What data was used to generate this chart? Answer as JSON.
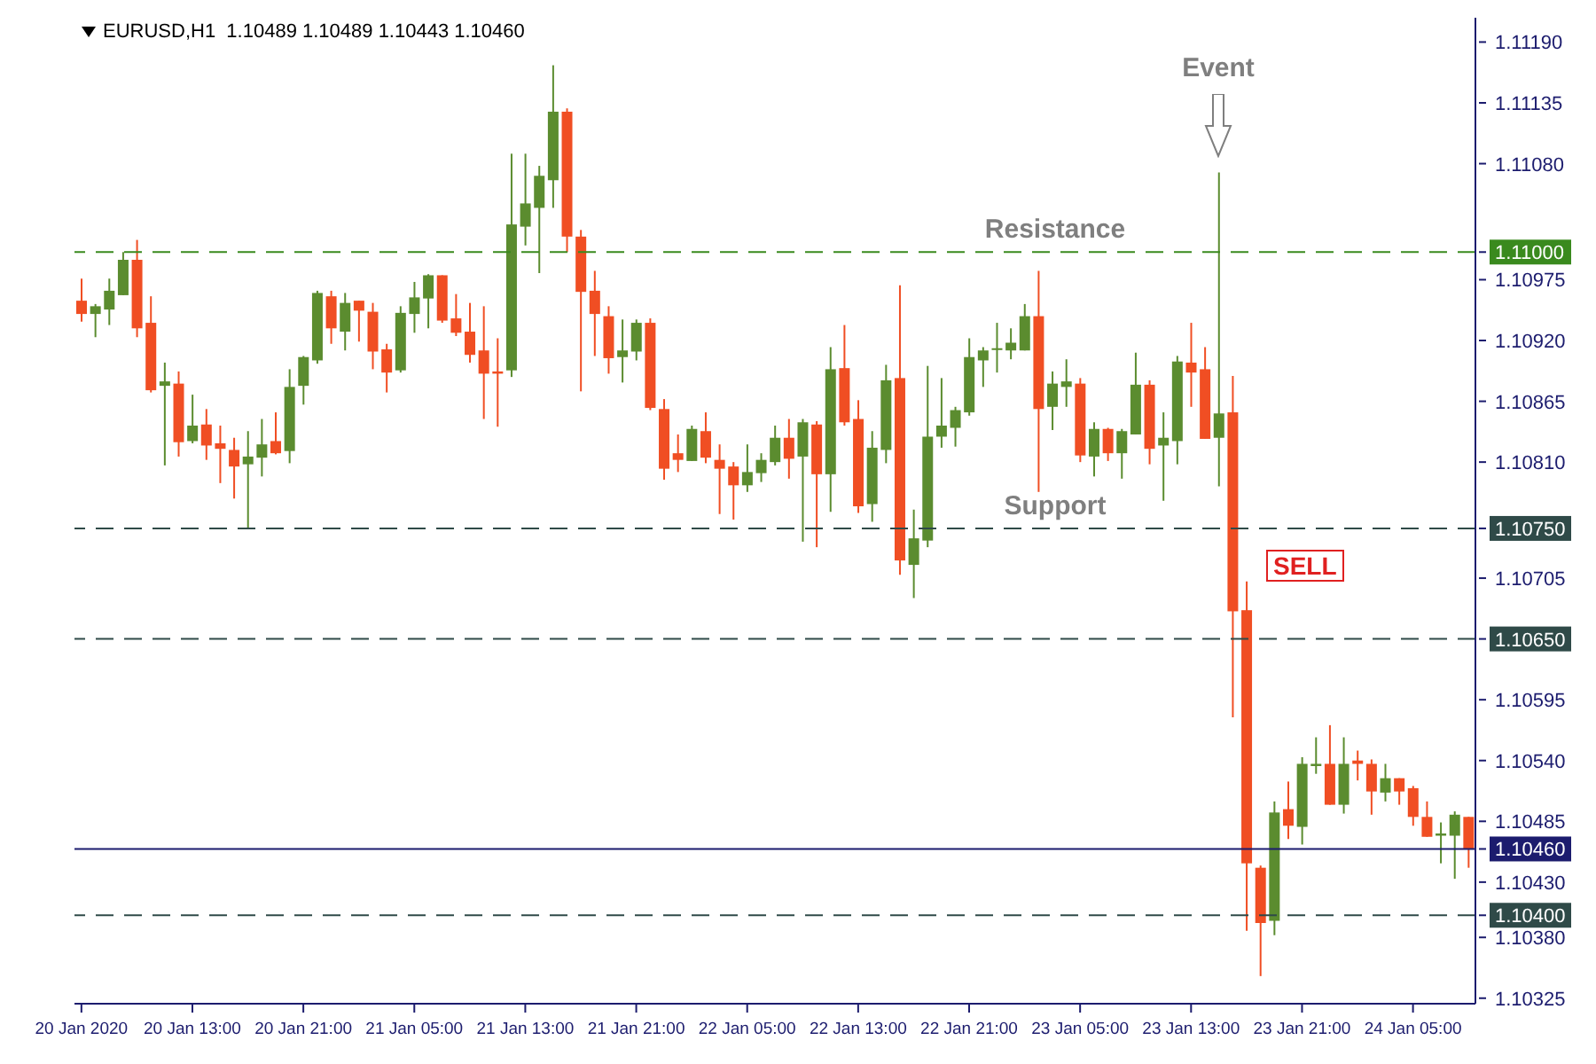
{
  "chart_data": {
    "type": "candlestick",
    "title": "EURUSD,H1  1.10489 1.10489 1.10443 1.10460",
    "categories": [
      "20 Jan 2020",
      null,
      null,
      null,
      null,
      null,
      null,
      null,
      "20 Jan 13:00",
      null,
      null,
      null,
      null,
      null,
      null,
      null,
      "20 Jan 21:00",
      null,
      null,
      null,
      null,
      null,
      null,
      null,
      "21 Jan 05:00",
      null,
      null,
      null,
      null,
      null,
      null,
      null,
      "21 Jan 13:00",
      null,
      null,
      null,
      null,
      null,
      null,
      null,
      "21 Jan 21:00",
      null,
      null,
      null,
      null,
      null,
      null,
      null,
      "22 Jan 05:00",
      null,
      null,
      null,
      null,
      null,
      null,
      null,
      "22 Jan 13:00",
      null,
      null,
      null,
      null,
      null,
      null,
      null,
      "22 Jan 21:00",
      null,
      null,
      null,
      null,
      null,
      null,
      null,
      "23 Jan 05:00",
      null,
      null,
      null,
      null,
      null,
      null,
      null,
      "23 Jan 13:00",
      null,
      null,
      null,
      null,
      null,
      null,
      null,
      "23 Jan 21:00",
      null,
      null,
      null,
      null,
      null,
      null,
      null,
      "24 Jan 05:00",
      null,
      null,
      null,
      null
    ],
    "ohlc": [
      [
        1.10956,
        1.10976,
        1.10937,
        1.10944
      ],
      [
        1.10944,
        1.10953,
        1.10923,
        1.10951
      ],
      [
        1.10948,
        1.10976,
        1.10934,
        1.10965
      ],
      [
        1.10961,
        1.11,
        1.10961,
        1.10993
      ],
      [
        1.10993,
        1.11011,
        1.10923,
        1.10931
      ],
      [
        1.10936,
        1.1096,
        1.10873,
        1.10875
      ],
      [
        1.10879,
        1.109,
        1.10807,
        1.10883
      ],
      [
        1.10881,
        1.10892,
        1.10815,
        1.10828
      ],
      [
        1.10829,
        1.10871,
        1.10827,
        1.10843
      ],
      [
        1.10844,
        1.10858,
        1.10812,
        1.10825
      ],
      [
        1.10827,
        1.10843,
        1.10791,
        1.10822
      ],
      [
        1.10821,
        1.10832,
        1.10777,
        1.10806
      ],
      [
        1.10808,
        1.10838,
        1.1075,
        1.10815
      ],
      [
        1.10814,
        1.10849,
        1.10797,
        1.10826
      ],
      [
        1.10829,
        1.10855,
        1.10817,
        1.10818
      ],
      [
        1.1082,
        1.10894,
        1.10809,
        1.10878
      ],
      [
        1.10879,
        1.10906,
        1.10862,
        1.10905
      ],
      [
        1.10902,
        1.10965,
        1.10899,
        1.10963
      ],
      [
        1.1096,
        1.10965,
        1.10917,
        1.10931
      ],
      [
        1.10928,
        1.10963,
        1.10911,
        1.10954
      ],
      [
        1.10956,
        1.10956,
        1.10919,
        1.10947
      ],
      [
        1.10946,
        1.10954,
        1.10894,
        1.1091
      ],
      [
        1.10912,
        1.10917,
        1.10873,
        1.10891
      ],
      [
        1.10893,
        1.10951,
        1.10891,
        1.10945
      ],
      [
        1.10944,
        1.10973,
        1.10927,
        1.10959
      ],
      [
        1.10958,
        1.1098,
        1.10931,
        1.10979
      ],
      [
        1.10979,
        1.10979,
        1.10936,
        1.10938
      ],
      [
        1.1094,
        1.10962,
        1.10924,
        1.10927
      ],
      [
        1.10928,
        1.10954,
        1.109,
        1.10907
      ],
      [
        1.10911,
        1.10951,
        1.10849,
        1.1089
      ],
      [
        1.10892,
        1.10922,
        1.10842,
        1.1089
      ],
      [
        1.10893,
        1.11089,
        1.10887,
        1.11025
      ],
      [
        1.11023,
        1.11089,
        1.11006,
        1.11044
      ],
      [
        1.1104,
        1.11078,
        1.10981,
        1.11069
      ],
      [
        1.11065,
        1.11169,
        1.1104,
        1.11127
      ],
      [
        1.11127,
        1.1113,
        1.11,
        1.11014
      ],
      [
        1.11014,
        1.1102,
        1.10874,
        1.10964
      ],
      [
        1.10965,
        1.10983,
        1.10906,
        1.10944
      ],
      [
        1.10942,
        1.10951,
        1.1089,
        1.10904
      ],
      [
        1.10905,
        1.10939,
        1.10882,
        1.10911
      ],
      [
        1.1091,
        1.10939,
        1.10902,
        1.10936
      ],
      [
        1.10936,
        1.1094,
        1.10857,
        1.10859
      ],
      [
        1.10858,
        1.10867,
        1.10794,
        1.10804
      ],
      [
        1.10818,
        1.10835,
        1.10801,
        1.10812
      ],
      [
        1.10811,
        1.10843,
        1.10811,
        1.1084
      ],
      [
        1.10838,
        1.10855,
        1.10809,
        1.10814
      ],
      [
        1.10812,
        1.10826,
        1.10763,
        1.10804
      ],
      [
        1.10806,
        1.1081,
        1.10758,
        1.10789
      ],
      [
        1.10789,
        1.10826,
        1.10783,
        1.10801
      ],
      [
        1.108,
        1.10818,
        1.10792,
        1.10812
      ],
      [
        1.1081,
        1.10843,
        1.10807,
        1.10832
      ],
      [
        1.10832,
        1.10849,
        1.10795,
        1.10813
      ],
      [
        1.10815,
        1.10849,
        1.10738,
        1.10846
      ],
      [
        1.10844,
        1.10847,
        1.10733,
        1.10799
      ],
      [
        1.10799,
        1.10914,
        1.10765,
        1.10894
      ],
      [
        1.10895,
        1.10934,
        1.10843,
        1.10846
      ],
      [
        1.10849,
        1.10866,
        1.10764,
        1.1077
      ],
      [
        1.10772,
        1.10838,
        1.10756,
        1.10823
      ],
      [
        1.10821,
        1.10898,
        1.10809,
        1.10884
      ],
      [
        1.10886,
        1.1097,
        1.10708,
        1.10721
      ],
      [
        1.10717,
        1.10767,
        1.10687,
        1.10741
      ],
      [
        1.10739,
        1.10897,
        1.10733,
        1.10833
      ],
      [
        1.10833,
        1.10886,
        1.10823,
        1.10843
      ],
      [
        1.10841,
        1.1086,
        1.10824,
        1.10857
      ],
      [
        1.10855,
        1.10922,
        1.10852,
        1.10905
      ],
      [
        1.10902,
        1.10914,
        1.10878,
        1.10911
      ],
      [
        1.10913,
        1.10936,
        1.10891,
        1.10913
      ],
      [
        1.10911,
        1.10931,
        1.10903,
        1.10918
      ],
      [
        1.10911,
        1.10953,
        1.10911,
        1.10942
      ],
      [
        1.10942,
        1.10983,
        1.10783,
        1.10858
      ],
      [
        1.1086,
        1.10892,
        1.10839,
        1.10881
      ],
      [
        1.10878,
        1.10903,
        1.1086,
        1.10883
      ],
      [
        1.10881,
        1.10886,
        1.1081,
        1.10816
      ],
      [
        1.10815,
        1.10846,
        1.10797,
        1.1084
      ],
      [
        1.1084,
        1.10841,
        1.10811,
        1.10818
      ],
      [
        1.10818,
        1.1084,
        1.10795,
        1.10838
      ],
      [
        1.10835,
        1.10909,
        1.10835,
        1.1088
      ],
      [
        1.1088,
        1.10884,
        1.10808,
        1.10822
      ],
      [
        1.10825,
        1.10855,
        1.10775,
        1.10832
      ],
      [
        1.10829,
        1.10906,
        1.10808,
        1.10901
      ],
      [
        1.109,
        1.10936,
        1.1086,
        1.10891
      ],
      [
        1.10894,
        1.10914,
        1.10831,
        1.10831
      ],
      [
        1.10832,
        1.11072,
        1.10788,
        1.10854
      ],
      [
        1.10855,
        1.10888,
        1.10579,
        1.10675
      ],
      [
        1.10676,
        1.10702,
        1.10386,
        1.10447
      ],
      [
        1.10443,
        1.10445,
        1.10345,
        1.10393
      ],
      [
        1.10395,
        1.10503,
        1.10382,
        1.10493
      ],
      [
        1.10496,
        1.10521,
        1.10469,
        1.10481
      ],
      [
        1.1048,
        1.10543,
        1.10464,
        1.10537
      ],
      [
        1.10535,
        1.10561,
        1.10528,
        1.10537
      ],
      [
        1.10537,
        1.10572,
        1.105,
        1.105
      ],
      [
        1.105,
        1.10561,
        1.10492,
        1.10537
      ],
      [
        1.1054,
        1.10549,
        1.10522,
        1.10537
      ],
      [
        1.10537,
        1.10541,
        1.10491,
        1.10512
      ],
      [
        1.10511,
        1.10537,
        1.10503,
        1.10524
      ],
      [
        1.10524,
        1.10524,
        1.105,
        1.10512
      ],
      [
        1.10515,
        1.10517,
        1.10481,
        1.10489
      ],
      [
        1.10489,
        1.10503,
        1.10471,
        1.10471
      ],
      [
        1.10472,
        1.10484,
        1.10447,
        1.10474
      ],
      [
        1.10472,
        1.10494,
        1.10433,
        1.10491
      ],
      [
        1.10489,
        1.10489,
        1.10443,
        1.1046
      ]
    ],
    "colors": [
      "#f04e23",
      "#5b8c2f",
      "#5b8c2f",
      "#5b8c2f",
      "#f04e23",
      "#f04e23",
      "#5b8c2f",
      "#f04e23",
      "#5b8c2f",
      "#f04e23",
      "#f04e23",
      "#f04e23",
      "#5b8c2f",
      "#5b8c2f",
      "#f04e23",
      "#5b8c2f",
      "#5b8c2f",
      "#5b8c2f",
      "#f04e23",
      "#5b8c2f",
      "#f04e23",
      "#f04e23",
      "#f04e23",
      "#5b8c2f",
      "#5b8c2f",
      "#5b8c2f",
      "#f04e23",
      "#f04e23",
      "#f04e23",
      "#f04e23",
      "#f04e23",
      "#5b8c2f",
      "#5b8c2f",
      "#5b8c2f",
      "#5b8c2f",
      "#f04e23",
      "#f04e23",
      "#f04e23",
      "#f04e23",
      "#5b8c2f",
      "#5b8c2f",
      "#f04e23",
      "#f04e23",
      "#f04e23",
      "#5b8c2f",
      "#f04e23",
      "#f04e23",
      "#f04e23",
      "#5b8c2f",
      "#5b8c2f",
      "#5b8c2f",
      "#f04e23",
      "#5b8c2f",
      "#f04e23",
      "#5b8c2f",
      "#f04e23",
      "#f04e23",
      "#5b8c2f",
      "#5b8c2f",
      "#f04e23",
      "#5b8c2f",
      "#5b8c2f",
      "#5b8c2f",
      "#5b8c2f",
      "#5b8c2f",
      "#5b8c2f",
      "#5b8c2f",
      "#5b8c2f",
      "#5b8c2f",
      "#f04e23",
      "#5b8c2f",
      "#5b8c2f",
      "#f04e23",
      "#5b8c2f",
      "#f04e23",
      "#5b8c2f",
      "#5b8c2f",
      "#f04e23",
      "#5b8c2f",
      "#5b8c2f",
      "#f04e23",
      "#f04e23",
      "#5b8c2f",
      "#f04e23",
      "#f04e23",
      "#f04e23",
      "#5b8c2f",
      "#f04e23",
      "#5b8c2f",
      "#5b8c2f",
      "#f04e23",
      "#5b8c2f",
      "#f04e23",
      "#f04e23",
      "#5b8c2f",
      "#f04e23",
      "#f04e23",
      "#f04e23",
      "#5b8c2f",
      "#5b8c2f",
      "#f04e23"
    ],
    "ylim": [
      1.1032,
      1.11212
    ],
    "yticks": [
      {
        "value": 1.1119,
        "label": "1.11190"
      },
      {
        "value": 1.11135,
        "label": "1.11135"
      },
      {
        "value": 1.1108,
        "label": "1.11080"
      },
      {
        "value": 1.11,
        "label": "1.11000"
      },
      {
        "value": 1.10975,
        "label": "1.10975"
      },
      {
        "value": 1.1092,
        "label": "1.10920"
      },
      {
        "value": 1.10865,
        "label": "1.10865"
      },
      {
        "value": 1.1081,
        "label": "1.10810"
      },
      {
        "value": 1.1075,
        "label": "1.10750"
      },
      {
        "value": 1.10705,
        "label": "1.10705"
      },
      {
        "value": 1.1065,
        "label": "1.10650"
      },
      {
        "value": 1.10595,
        "label": "1.10595"
      },
      {
        "value": 1.1054,
        "label": "1.10540"
      },
      {
        "value": 1.10485,
        "label": "1.10485"
      },
      {
        "value": 1.1046,
        "label": "1.10460"
      },
      {
        "value": 1.1043,
        "label": "1.10430"
      },
      {
        "value": 1.104,
        "label": "1.10400"
      },
      {
        "value": 1.1038,
        "label": "1.10380"
      },
      {
        "value": 1.10325,
        "label": "1.10325"
      }
    ],
    "ref_lines": [
      {
        "axis": "y",
        "value": 1.11,
        "label": "Resistance",
        "color": "#3a8a1e",
        "line_style": "dashed"
      },
      {
        "axis": "y",
        "value": 1.1075,
        "label": "Support",
        "color": "#2f4a48",
        "line_style": "dashed"
      },
      {
        "axis": "y",
        "value": 1.1065,
        "label": null,
        "color": "#2f4a48",
        "line_style": "dashed"
      },
      {
        "axis": "y",
        "value": 1.104,
        "label": null,
        "color": "#2f4a48",
        "line_style": "dashed"
      },
      {
        "axis": "y",
        "value": 1.1046,
        "label": null,
        "color": "#1c1c6e",
        "line_style": "solid"
      }
    ],
    "annotations": [
      "Event",
      "SELL"
    ]
  }
}
